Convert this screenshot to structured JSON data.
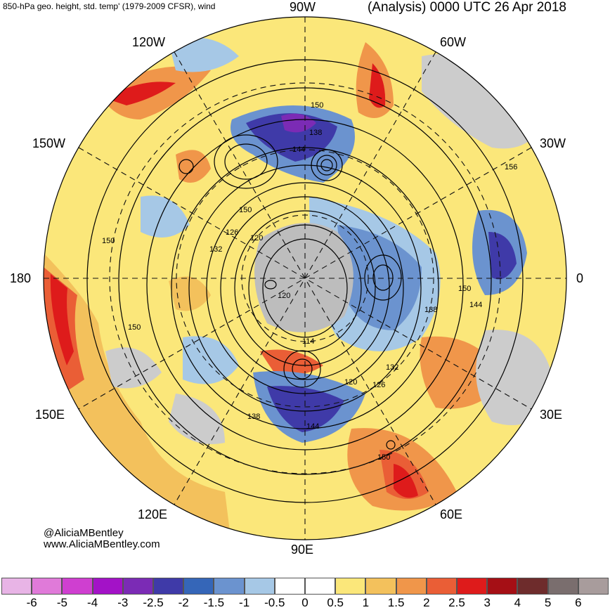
{
  "header": {
    "left_title": "850-hPa geo. height, std. temp' (1979-2009 CFSR), wind",
    "right_title": "(Analysis) 0000 UTC 26 Apr 2018"
  },
  "longitude_labels": {
    "n90w": "90W",
    "n120w": "120W",
    "n60w": "60W",
    "n150w": "150W",
    "n30w": "30W",
    "n180": "180",
    "n0": "0",
    "n150e": "150E",
    "n30e": "30E",
    "n120e": "120E",
    "n60e": "60E",
    "n90e": "90E"
  },
  "contour_labels": {
    "c1": "150",
    "c2": "138",
    "c3": "144",
    "c4": "150",
    "c5": "126",
    "c6": "120",
    "c7": "132",
    "c8": "150",
    "c9": "120",
    "c10": "150",
    "c11": "150",
    "c12": "144",
    "c13": "138",
    "c14": "156",
    "c15": "114",
    "c16": "132",
    "c17": "120",
    "c18": "126",
    "c19": "138",
    "c20": "144",
    "c21": "150"
  },
  "credits": {
    "handle": "@AliciaMBentley",
    "site": "www.AliciaMBentley.com"
  },
  "colorbar": {
    "ticks": [
      "-6",
      "-5",
      "-4",
      "-3",
      "-2.5",
      "-2",
      "-1.5",
      "-1",
      "-0.5",
      "0",
      "0.5",
      "1",
      "1.5",
      "2",
      "2.5",
      "3",
      "4",
      "5",
      "6"
    ],
    "colors": [
      "#e8b4e6",
      "#e07ad9",
      "#cf3fd0",
      "#a312c7",
      "#7b2bb5",
      "#3f3aa8",
      "#3566b8",
      "#6b93cf",
      "#a6c8e6",
      "#ffffff",
      "#ffffff",
      "#fbe77a",
      "#f3c15c",
      "#f0964a",
      "#ea5e36",
      "#de1b1b",
      "#a50f15",
      "#6e2c2c",
      "#7a6e6e",
      "#a89c9c"
    ]
  },
  "palette": {
    "land_gray": "#cccccc",
    "warm_light": "#fbe77a",
    "warm_mid": "#f3c15c",
    "warm_orange": "#f0964a",
    "warm_red": "#de1b1b",
    "cool_light": "#a6c8e6",
    "cool_mid": "#6b93cf",
    "cool_dark": "#3f3aa8"
  }
}
